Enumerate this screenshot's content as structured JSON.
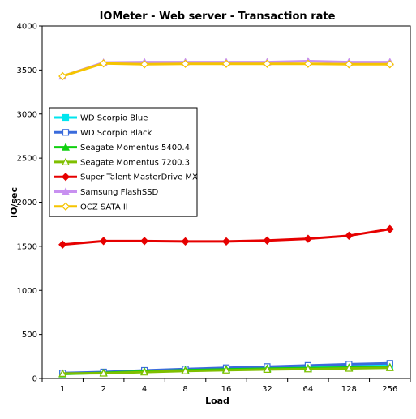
{
  "chart_data": {
    "type": "line",
    "title": "IOMeter - Web server - Transaction rate",
    "xlabel": "Load",
    "ylabel": "IO/sec",
    "categories": [
      "1",
      "2",
      "4",
      "8",
      "16",
      "32",
      "64",
      "128",
      "256"
    ],
    "ylim": [
      0,
      4000
    ],
    "yticks": [
      0,
      500,
      1000,
      1500,
      2000,
      2500,
      3000,
      3500,
      4000
    ],
    "grid": false,
    "legend_position": "left-middle",
    "series": [
      {
        "name": "WD Scorpio Blue",
        "color": "#00e5ee",
        "marker": "square-filled",
        "values": [
          58,
          68,
          85,
          98,
          108,
          118,
          128,
          140,
          150
        ]
      },
      {
        "name": "WD Scorpio Black",
        "color": "#3a6bdc",
        "marker": "square-open",
        "values": [
          62,
          74,
          92,
          108,
          122,
          135,
          148,
          162,
          172
        ]
      },
      {
        "name": "Seagate Momentus 5400.4",
        "color": "#10d010",
        "marker": "triangle-filled",
        "values": [
          50,
          64,
          80,
          94,
          104,
          112,
          118,
          124,
          130
        ]
      },
      {
        "name": "Seagate Momentus 7200.3",
        "color": "#7fbf00",
        "marker": "triangle-open",
        "values": [
          56,
          60,
          72,
          85,
          94,
          102,
          108,
          115,
          122
        ]
      },
      {
        "name": "Super Talent MasterDrive MX",
        "color": "#e60000",
        "marker": "diamond-filled",
        "values": [
          1520,
          1560,
          1560,
          1555,
          1555,
          1565,
          1585,
          1620,
          1695
        ]
      },
      {
        "name": "Samsung FlashSSD",
        "color": "#c890f0",
        "marker": "triangle-filled",
        "values": [
          3430,
          3585,
          3590,
          3590,
          3590,
          3590,
          3600,
          3590,
          3590
        ]
      },
      {
        "name": "OCZ SATA II",
        "color": "#f5c400",
        "marker": "diamond-open",
        "values": [
          3430,
          3575,
          3565,
          3570,
          3570,
          3570,
          3570,
          3565,
          3565
        ]
      }
    ]
  }
}
